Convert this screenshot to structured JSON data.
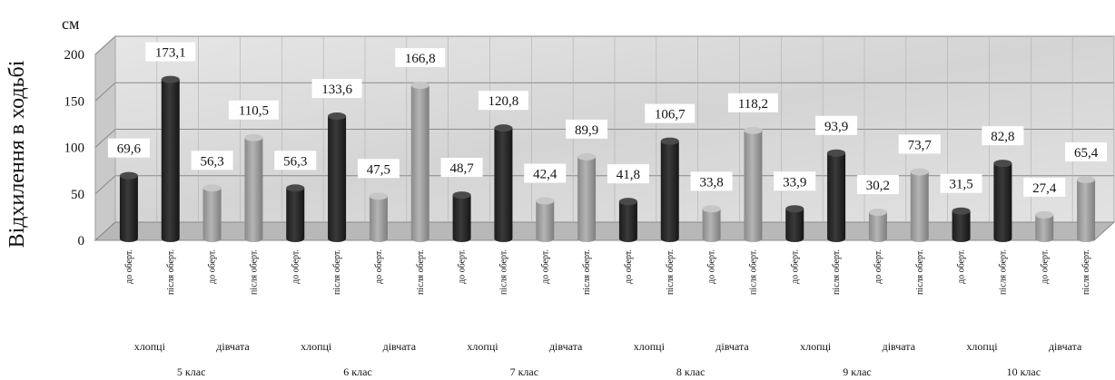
{
  "chart_data": {
    "type": "bar",
    "ylabel": "Відхилення в ходьбі",
    "unit": "см",
    "ylim": [
      0,
      200
    ],
    "yticks": [
      "0",
      "50",
      "100",
      "150",
      "200"
    ],
    "grid": true,
    "bar_labels": [
      "до оберт.",
      "після оберт.",
      "до оберт.",
      "після оберт."
    ],
    "subgroups": [
      "хлопці",
      "дівчата"
    ],
    "groups": [
      {
        "name": "5 клас",
        "values": [
          69.6,
          173.1,
          56.3,
          110.5
        ],
        "labels": [
          "69,6",
          "173,1",
          "56,3",
          "110,5"
        ]
      },
      {
        "name": "6 клас",
        "values": [
          56.3,
          133.6,
          47.5,
          166.8
        ],
        "labels": [
          "56,3",
          "133,6",
          "47,5",
          "166,8"
        ]
      },
      {
        "name": "7 клас",
        "values": [
          48.7,
          120.8,
          42.4,
          89.9
        ],
        "labels": [
          "48,7",
          "120,8",
          "42,4",
          "89,9"
        ]
      },
      {
        "name": "8 клас",
        "values": [
          41.8,
          106.7,
          33.8,
          118.2
        ],
        "labels": [
          "41,8",
          "106,7",
          "33,8",
          "118,2"
        ]
      },
      {
        "name": "9 клас",
        "values": [
          33.9,
          93.9,
          30.2,
          73.7
        ],
        "labels": [
          "33,9",
          "93,9",
          "30,2",
          "73,7"
        ]
      },
      {
        "name": "10 клас",
        "values": [
          31.5,
          82.8,
          27.4,
          65.4
        ],
        "labels": [
          "31,5",
          "82,8",
          "27,4",
          "65,4"
        ]
      }
    ],
    "colors": {
      "boys": "#2b2b2b",
      "girls": "#9a9a9a",
      "wall": "#dcdcdc",
      "grid": "#8a8a8a"
    }
  }
}
